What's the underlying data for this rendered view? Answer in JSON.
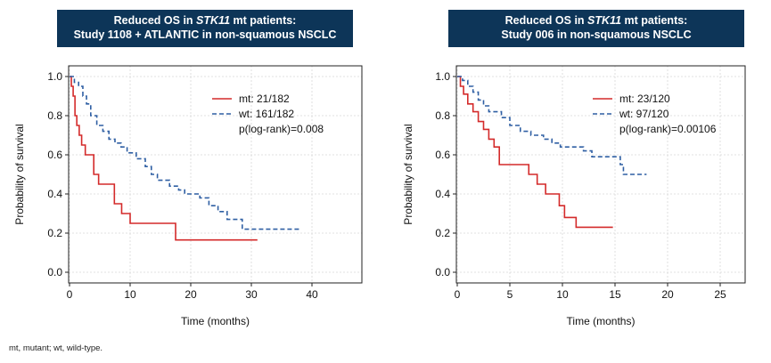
{
  "footnote": "mt, mutant; wt, wild-type.",
  "chart_data": [
    {
      "type": "line",
      "title_line1_pre": "Reduced OS in ",
      "title_line1_gene": "STK11",
      "title_line1_post": " mt patients:",
      "title_line2": "Study 1108 + ATLANTIC in non-squamous NSCLC",
      "xlabel": "Time (months)",
      "ylabel": "Probability of survival",
      "xlim": [
        0,
        48
      ],
      "ylim": [
        0,
        1.0
      ],
      "xticks": [
        0,
        10,
        20,
        30,
        40
      ],
      "yticks": [
        0.0,
        0.2,
        0.4,
        0.6,
        0.8,
        1.0
      ],
      "ytick_labels": [
        "0.0",
        "0.2",
        "0.4",
        "0.6",
        "0.8",
        "1.0"
      ],
      "grid": true,
      "legend_position": "top-right",
      "annotation": "p(log-rank)=0.008",
      "colors": {
        "mt": "#d42a2a",
        "wt": "#2f5fa3"
      },
      "series": [
        {
          "name": "mt: 21/182",
          "style": "solid",
          "steps": [
            [
              0,
              1.0
            ],
            [
              0.3,
              0.95
            ],
            [
              0.6,
              0.9
            ],
            [
              0.9,
              0.8
            ],
            [
              1.2,
              0.75
            ],
            [
              1.6,
              0.7
            ],
            [
              2.0,
              0.65
            ],
            [
              2.6,
              0.6
            ],
            [
              4.0,
              0.5
            ],
            [
              4.8,
              0.45
            ],
            [
              6.5,
              0.45
            ],
            [
              7.4,
              0.35
            ],
            [
              8.6,
              0.3
            ],
            [
              10.0,
              0.25
            ],
            [
              17.5,
              0.165
            ],
            [
              31.0,
              0.165
            ]
          ]
        },
        {
          "name": "wt: 161/182",
          "style": "dashed",
          "steps": [
            [
              0,
              1.0
            ],
            [
              0.8,
              0.97
            ],
            [
              1.5,
              0.95
            ],
            [
              2.2,
              0.9
            ],
            [
              2.8,
              0.86
            ],
            [
              3.5,
              0.8
            ],
            [
              4.5,
              0.75
            ],
            [
              5.5,
              0.72
            ],
            [
              6.5,
              0.68
            ],
            [
              7.5,
              0.66
            ],
            [
              8.5,
              0.64
            ],
            [
              9.5,
              0.61
            ],
            [
              11.0,
              0.58
            ],
            [
              12.5,
              0.54
            ],
            [
              13.5,
              0.5
            ],
            [
              14.5,
              0.47
            ],
            [
              16.5,
              0.44
            ],
            [
              18.0,
              0.42
            ],
            [
              19.0,
              0.4
            ],
            [
              21.5,
              0.38
            ],
            [
              23.0,
              0.34
            ],
            [
              24.5,
              0.31
            ],
            [
              26.0,
              0.27
            ],
            [
              28.5,
              0.22
            ],
            [
              38.0,
              0.22
            ]
          ]
        }
      ]
    },
    {
      "type": "line",
      "title_line1_pre": "Reduced OS in ",
      "title_line1_gene": "STK11",
      "title_line1_post": " mt patients:",
      "title_line2": "Study 006 in non-squamous NSCLC",
      "xlabel": "Time (months)",
      "ylabel": "Probability of survival",
      "xlim": [
        0,
        28
      ],
      "ylim": [
        0,
        1.0
      ],
      "xticks": [
        0,
        5,
        10,
        15,
        20,
        25
      ],
      "yticks": [
        0.0,
        0.2,
        0.4,
        0.6,
        0.8,
        1.0
      ],
      "ytick_labels": [
        "0.0",
        "0.2",
        "0.4",
        "0.6",
        "0.8",
        "1.0"
      ],
      "grid": true,
      "legend_position": "top-right",
      "annotation": "p(log-rank)=0.00106",
      "colors": {
        "mt": "#d42a2a",
        "wt": "#2f5fa3"
      },
      "series": [
        {
          "name": "mt: 23/120",
          "style": "solid",
          "steps": [
            [
              0,
              1.0
            ],
            [
              0.3,
              0.95
            ],
            [
              0.6,
              0.91
            ],
            [
              1.0,
              0.86
            ],
            [
              1.5,
              0.82
            ],
            [
              2.0,
              0.77
            ],
            [
              2.5,
              0.73
            ],
            [
              3.0,
              0.68
            ],
            [
              3.5,
              0.64
            ],
            [
              4.0,
              0.55
            ],
            [
              6.8,
              0.5
            ],
            [
              7.6,
              0.45
            ],
            [
              8.4,
              0.4
            ],
            [
              9.7,
              0.34
            ],
            [
              10.2,
              0.28
            ],
            [
              11.3,
              0.23
            ],
            [
              14.8,
              0.23
            ]
          ]
        },
        {
          "name": "wt: 97/120",
          "style": "dashed",
          "steps": [
            [
              0,
              1.0
            ],
            [
              0.5,
              0.98
            ],
            [
              1.0,
              0.95
            ],
            [
              1.5,
              0.92
            ],
            [
              2.0,
              0.88
            ],
            [
              2.5,
              0.85
            ],
            [
              3.0,
              0.82
            ],
            [
              4.2,
              0.79
            ],
            [
              5.0,
              0.75
            ],
            [
              6.0,
              0.72
            ],
            [
              7.0,
              0.7
            ],
            [
              8.2,
              0.68
            ],
            [
              9.0,
              0.66
            ],
            [
              9.8,
              0.64
            ],
            [
              12.0,
              0.62
            ],
            [
              12.8,
              0.59
            ],
            [
              15.5,
              0.55
            ],
            [
              15.8,
              0.5
            ],
            [
              18.0,
              0.5
            ]
          ]
        }
      ]
    }
  ]
}
